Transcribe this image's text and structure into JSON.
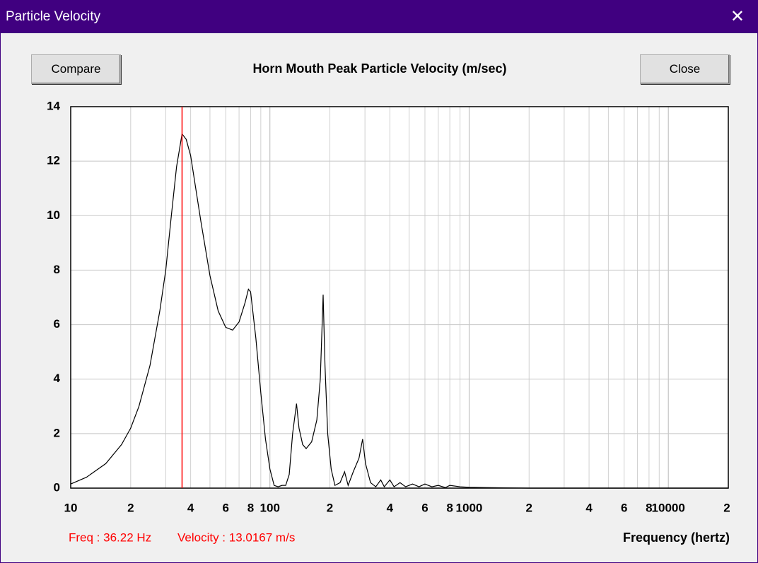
{
  "window_title": "Particle Velocity",
  "buttons": {
    "compare": "Compare",
    "close": "Close"
  },
  "chart_data": {
    "type": "line",
    "title": "Horn Mouth Peak Particle Velocity (m/sec)",
    "x_label": "Frequency (hertz)",
    "x_log": true,
    "xlim": [
      10,
      20000
    ],
    "ylim": [
      0,
      14
    ],
    "yticks": [
      0,
      2,
      4,
      6,
      8,
      10,
      12,
      14
    ],
    "xticks": [
      10,
      {
        "value": 20,
        "label": "2"
      },
      {
        "value": 40,
        "label": "4"
      },
      {
        "value": 60,
        "label": "6"
      },
      {
        "value": 80,
        "label": "8"
      },
      100,
      {
        "value": 200,
        "label": "2"
      },
      {
        "value": 400,
        "label": "4"
      },
      {
        "value": 600,
        "label": "6"
      },
      {
        "value": 800,
        "label": "8"
      },
      1000,
      {
        "value": 2000,
        "label": "2"
      },
      {
        "value": 4000,
        "label": "4"
      },
      {
        "value": 6000,
        "label": "6"
      },
      {
        "value": 8000,
        "label": "8"
      },
      10000,
      {
        "value": 20000,
        "label": "2"
      }
    ],
    "x_minor_grid": [
      30,
      50,
      70,
      90,
      300,
      500,
      700,
      900,
      3000,
      5000,
      7000,
      9000
    ],
    "grid": true,
    "color": "#000000",
    "cursor_x": 36.22,
    "cursor_color": "#ff0000",
    "annotations": [
      "Freq : 36.22 Hz",
      "Velocity : 13.0167 m/s"
    ],
    "x": [
      10,
      12,
      15,
      18,
      20,
      22,
      25,
      28,
      30,
      32,
      34,
      36.22,
      38,
      40,
      45,
      50,
      55,
      60,
      65,
      70,
      75,
      78,
      80,
      85,
      90,
      95,
      100,
      105,
      110,
      115,
      120,
      125,
      130,
      136,
      140,
      146,
      152,
      162,
      172,
      179,
      185,
      189,
      195,
      203,
      212,
      225,
      237,
      247,
      262,
      280,
      292,
      302,
      320,
      340,
      360,
      375,
      400,
      420,
      450,
      480,
      520,
      560,
      600,
      650,
      700,
      760,
      800,
      900,
      1000,
      1200,
      1500,
      2000,
      20000
    ],
    "values": [
      0.15,
      0.4,
      0.9,
      1.6,
      2.2,
      3.0,
      4.5,
      6.5,
      8.0,
      10.0,
      11.8,
      13.0,
      12.8,
      12.2,
      9.8,
      7.8,
      6.5,
      5.9,
      5.8,
      6.1,
      6.8,
      7.3,
      7.2,
      5.5,
      3.5,
      1.8,
      0.7,
      0.1,
      0.05,
      0.1,
      0.1,
      0.5,
      2.0,
      3.1,
      2.2,
      1.6,
      1.45,
      1.7,
      2.5,
      4.0,
      7.1,
      4.5,
      2.0,
      0.7,
      0.1,
      0.2,
      0.6,
      0.1,
      0.6,
      1.1,
      1.8,
      0.9,
      0.2,
      0.05,
      0.3,
      0.05,
      0.3,
      0.05,
      0.2,
      0.05,
      0.15,
      0.05,
      0.15,
      0.05,
      0.1,
      0.02,
      0.1,
      0.05,
      0.03,
      0.02,
      0.01,
      0,
      0
    ]
  }
}
